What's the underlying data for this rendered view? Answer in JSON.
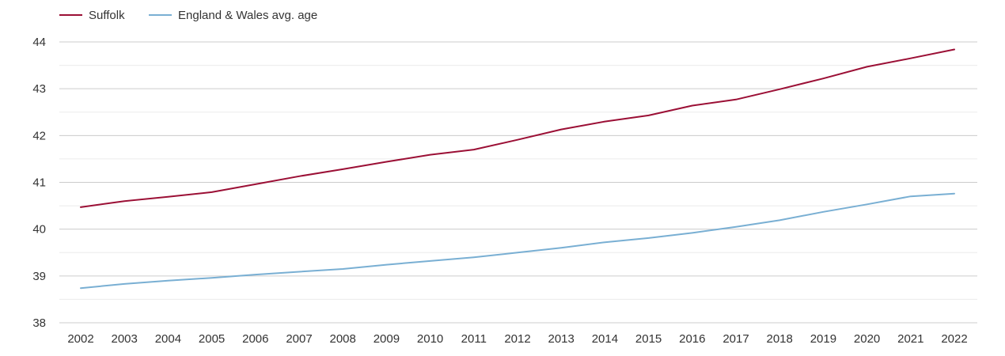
{
  "chart_data": {
    "type": "line",
    "title": "",
    "xlabel": "",
    "ylabel": "",
    "x": [
      "2002",
      "2003",
      "2004",
      "2005",
      "2006",
      "2007",
      "2008",
      "2009",
      "2010",
      "2011",
      "2012",
      "2013",
      "2014",
      "2015",
      "2016",
      "2017",
      "2018",
      "2019",
      "2020",
      "2021",
      "2022"
    ],
    "ylim": [
      38,
      44
    ],
    "yticks": [
      "38",
      "39",
      "40",
      "41",
      "42",
      "43",
      "44"
    ],
    "grid": true,
    "legend_position": "top-left",
    "series": [
      {
        "name": "Suffolk",
        "color": "#9b0f35",
        "values": [
          40.47,
          40.6,
          40.69,
          40.79,
          40.96,
          41.13,
          41.28,
          41.44,
          41.59,
          41.7,
          41.91,
          42.13,
          42.3,
          42.43,
          42.64,
          42.77,
          42.99,
          43.22,
          43.47,
          43.65,
          43.84
        ]
      },
      {
        "name": "England & Wales avg. age",
        "color": "#79afd3",
        "values": [
          38.74,
          38.83,
          38.9,
          38.96,
          39.03,
          39.09,
          39.15,
          39.24,
          39.32,
          39.4,
          39.5,
          39.6,
          39.72,
          39.81,
          39.92,
          40.05,
          40.19,
          40.37,
          40.53,
          40.7,
          40.76
        ]
      }
    ]
  }
}
